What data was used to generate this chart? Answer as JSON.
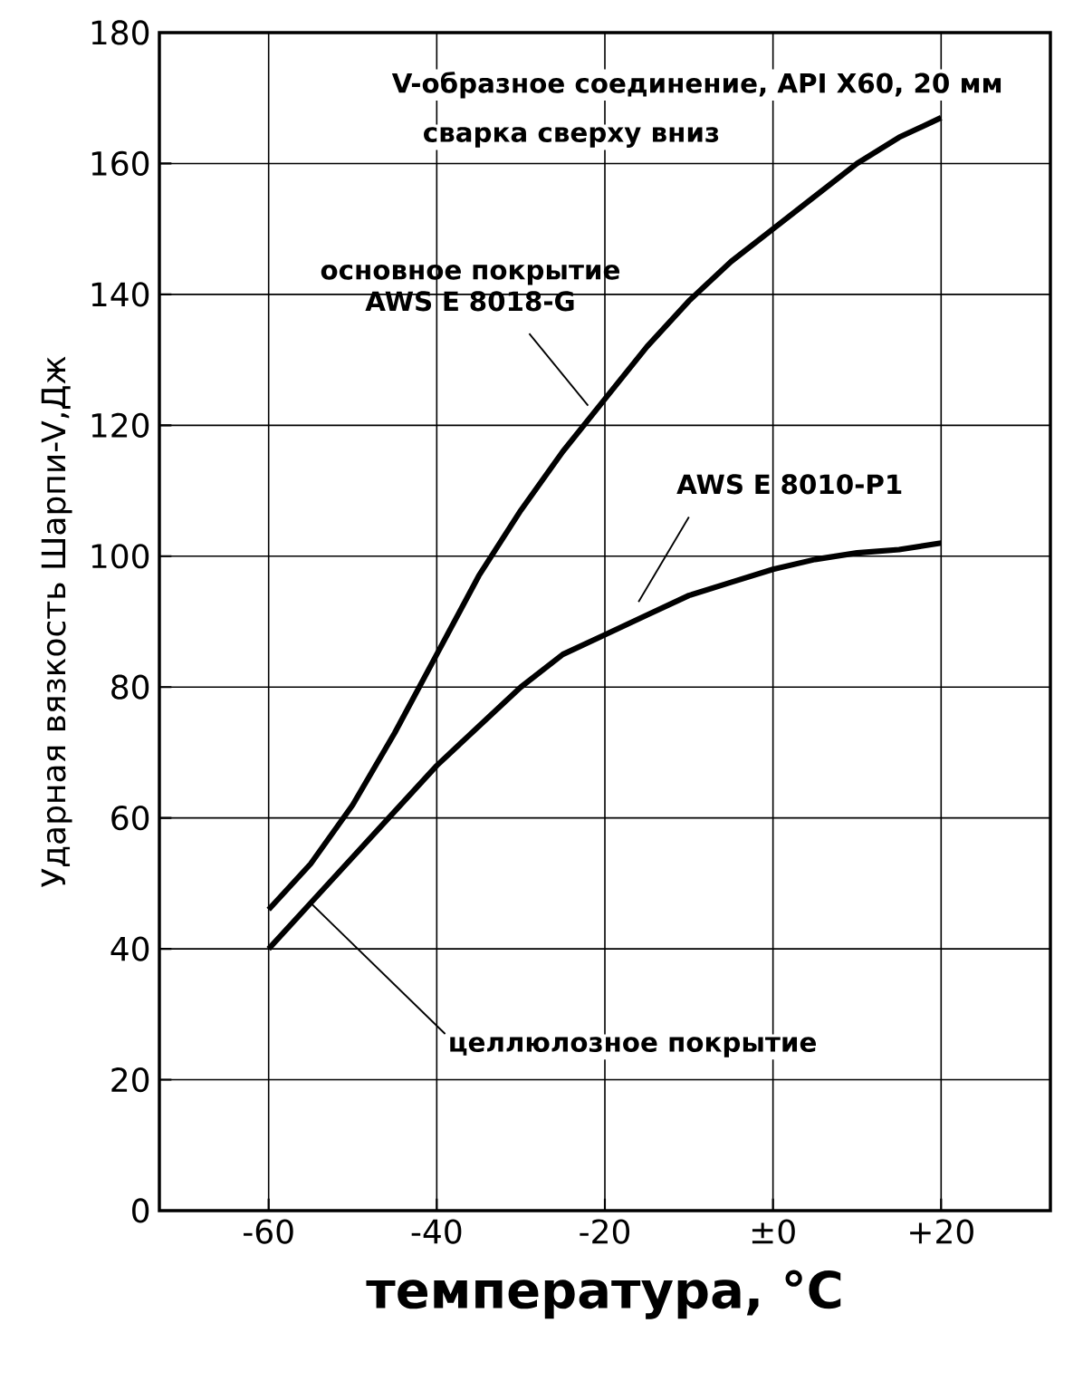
{
  "chart_data": {
    "type": "line",
    "title": "V-образное соединение, API X60, 20 мм",
    "subtitle": "сварка сверху вниз",
    "xlabel": "температура, °C",
    "ylabel": "Ударная вязкость Шарпи-V,Дж",
    "x": [
      -60,
      -55,
      -50,
      -45,
      -40,
      -35,
      -30,
      -25,
      -20,
      -15,
      -10,
      -5,
      0,
      5,
      10,
      15,
      20
    ],
    "series": [
      {
        "name": "основное покрытие AWS E 8018-G",
        "color": "#000000",
        "values": [
          46,
          53,
          62,
          73,
          85,
          97,
          107,
          116,
          124,
          132,
          139,
          145,
          150,
          155,
          160,
          164,
          167
        ]
      },
      {
        "name": "AWS E 8010-P1",
        "color": "#000000",
        "values": [
          40,
          47,
          54,
          61,
          68,
          74,
          80,
          85,
          88,
          91,
          94,
          96,
          98,
          99.5,
          100.5,
          101,
          102
        ]
      }
    ],
    "annotations": [
      {
        "text": "целлюлозное покрытие",
        "x": -55,
        "y": 47
      }
    ],
    "xlim": [
      -73,
      33
    ],
    "ylim": [
      0,
      180
    ],
    "xticks": [
      -60,
      -40,
      -20,
      {
        "value": 0,
        "label": "±0"
      },
      {
        "value": 20,
        "label": "+20"
      }
    ],
    "yticks": [
      0,
      20,
      40,
      60,
      80,
      100,
      120,
      140,
      160,
      180
    ],
    "grid": true,
    "legend": false,
    "marker": "none",
    "line_style": "solid"
  }
}
